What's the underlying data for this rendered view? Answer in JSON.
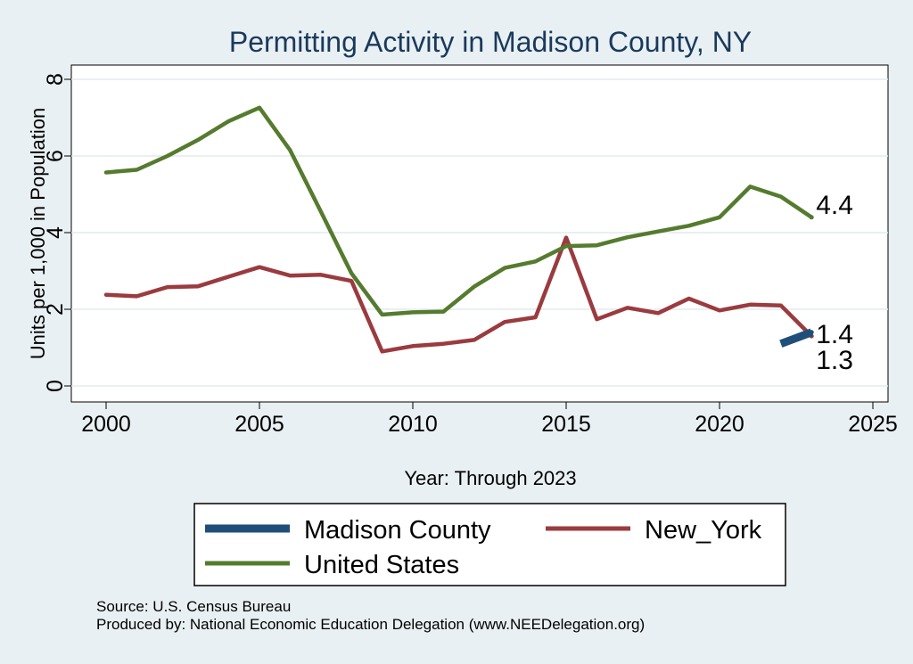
{
  "chart_data": {
    "type": "line",
    "title": "Permitting Activity in Madison County, NY",
    "xlabel": "Year: Through 2023",
    "ylabel": "Units per 1,000 in Population",
    "xlim": [
      2000,
      2025
    ],
    "ylim": [
      0,
      8
    ],
    "xticks": [
      2000,
      2005,
      2010,
      2015,
      2020,
      2025
    ],
    "yticks": [
      0,
      2,
      4,
      6,
      8
    ],
    "grid": true,
    "legend_position": "bottom",
    "series": [
      {
        "name": "Madison County",
        "color": "#1f4e79",
        "x": [
          2022,
          2023
        ],
        "values": [
          1.1,
          1.4
        ],
        "end_label": "1.4"
      },
      {
        "name": "New_York",
        "color": "#9a3b3f",
        "x": [
          2000,
          2001,
          2002,
          2003,
          2004,
          2005,
          2006,
          2007,
          2008,
          2009,
          2010,
          2011,
          2012,
          2013,
          2014,
          2015,
          2016,
          2017,
          2018,
          2019,
          2020,
          2021,
          2022,
          2023
        ],
        "values": [
          2.38,
          2.34,
          2.58,
          2.6,
          2.85,
          3.1,
          2.88,
          2.9,
          2.74,
          0.9,
          1.04,
          1.1,
          1.2,
          1.67,
          1.79,
          3.87,
          1.74,
          2.04,
          1.9,
          2.28,
          1.97,
          2.12,
          2.1,
          1.3
        ],
        "end_label": "1.3"
      },
      {
        "name": "United States",
        "color": "#557b2e",
        "x": [
          2000,
          2001,
          2002,
          2003,
          2004,
          2005,
          2006,
          2007,
          2008,
          2009,
          2010,
          2011,
          2012,
          2013,
          2014,
          2015,
          2016,
          2017,
          2018,
          2019,
          2020,
          2021,
          2022,
          2023
        ],
        "values": [
          5.57,
          5.64,
          6.0,
          6.42,
          6.91,
          7.26,
          6.15,
          4.55,
          2.94,
          1.86,
          1.92,
          1.94,
          2.59,
          3.08,
          3.25,
          3.65,
          3.67,
          3.88,
          4.03,
          4.18,
          4.4,
          5.2,
          4.94,
          4.4
        ],
        "end_label": "4.4"
      }
    ]
  },
  "footer": {
    "source": "Source: U.S. Census Bureau",
    "produced_by": "Produced by: National Economic Education Delegation (www.NEEDelegation.org)"
  }
}
